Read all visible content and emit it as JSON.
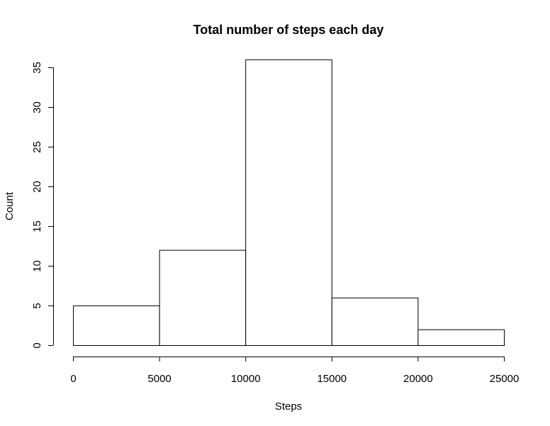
{
  "chart_data": {
    "type": "bar",
    "title": "Total number of steps each day",
    "xlabel": "Steps",
    "ylabel": "Count",
    "bins": [
      {
        "from": 0,
        "to": 5000,
        "count": 5
      },
      {
        "from": 5000,
        "to": 10000,
        "count": 12
      },
      {
        "from": 10000,
        "to": 15000,
        "count": 36
      },
      {
        "from": 15000,
        "to": 20000,
        "count": 6
      },
      {
        "from": 20000,
        "to": 25000,
        "count": 2
      }
    ],
    "xlim": [
      0,
      25000
    ],
    "ylim": [
      0,
      35
    ],
    "xticks": [
      "0",
      "5000",
      "10000",
      "15000",
      "20000",
      "25000"
    ],
    "yticks": [
      "0",
      "5",
      "10",
      "15",
      "20",
      "25",
      "30",
      "35"
    ],
    "grid": false,
    "bar_fill": "#ffffff",
    "bar_stroke": "#000000"
  }
}
